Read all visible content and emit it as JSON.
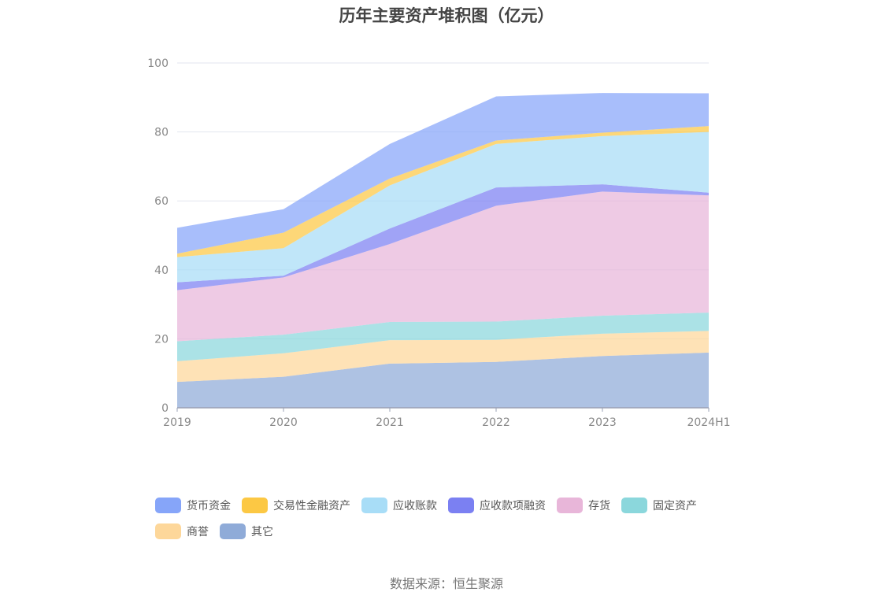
{
  "title": "历年主要资产堆积图（亿元）",
  "source": "数据来源：恒生聚源",
  "chart_data": {
    "type": "area",
    "stacked": true,
    "title": "历年主要资产堆积图（亿元）",
    "categories": [
      "2019",
      "2020",
      "2021",
      "2022",
      "2023",
      "2024H1"
    ],
    "ylim": [
      0,
      100
    ],
    "yticks": [
      0,
      20,
      40,
      60,
      80,
      100
    ],
    "grid": true,
    "legend_position": "bottom",
    "series": [
      {
        "name": "其它",
        "color": "#8fabd8",
        "values": [
          7.5,
          9.0,
          12.8,
          13.3,
          15.0,
          16.0
        ]
      },
      {
        "name": "商誉",
        "color": "#fdd79a",
        "values": [
          6.0,
          6.8,
          6.8,
          6.4,
          6.5,
          6.3
        ]
      },
      {
        "name": "固定资产",
        "color": "#8bd7dc",
        "values": [
          5.8,
          5.4,
          5.3,
          5.3,
          5.2,
          5.3
        ]
      },
      {
        "name": "存货",
        "color": "#e8b6d9",
        "values": [
          14.8,
          16.6,
          22.6,
          33.6,
          36.0,
          34.0
        ]
      },
      {
        "name": "应收款项融资",
        "color": "#7b80f2",
        "values": [
          2.3,
          0.5,
          4.5,
          5.3,
          2.1,
          0.8
        ]
      },
      {
        "name": "应收账款",
        "color": "#a8ddf7",
        "values": [
          7.3,
          8.0,
          12.5,
          12.6,
          14.0,
          17.6
        ]
      },
      {
        "name": "交易性金融资产",
        "color": "#fcc844",
        "values": [
          1.0,
          4.5,
          2.0,
          1.0,
          1.0,
          1.7
        ]
      },
      {
        "name": "货币资金",
        "color": "#86a5f9",
        "values": [
          7.5,
          6.8,
          10.0,
          12.8,
          11.5,
          9.5
        ]
      }
    ]
  },
  "legend": [
    {
      "label": "货币资金",
      "color": "#86a5f9"
    },
    {
      "label": "交易性金融资产",
      "color": "#fcc844"
    },
    {
      "label": "应收账款",
      "color": "#a8ddf7"
    },
    {
      "label": "应收款项融资",
      "color": "#7b80f2"
    },
    {
      "label": "存货",
      "color": "#e8b6d9"
    },
    {
      "label": "固定资产",
      "color": "#8bd7dc"
    },
    {
      "label": "商誉",
      "color": "#fdd79a"
    },
    {
      "label": "其它",
      "color": "#8fabd8"
    }
  ]
}
